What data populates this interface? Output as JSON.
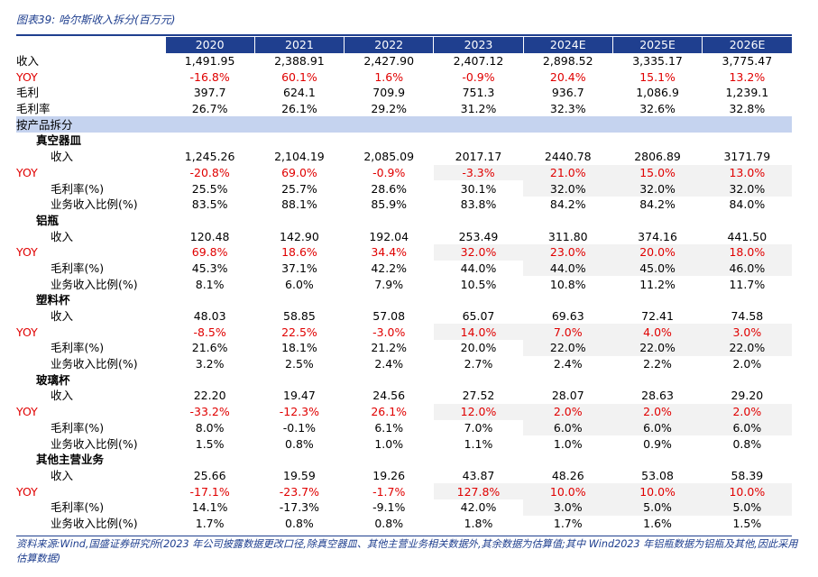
{
  "title": "图表39:  哈尔斯收入拆分(百万元)",
  "columns": [
    "2020",
    "2021",
    "2022",
    "2023",
    "2024E",
    "2025E",
    "2026E"
  ],
  "summary": [
    {
      "label": "收入",
      "type": "normal",
      "values": [
        "1,491.95",
        "2,388.91",
        "2,427.90",
        "2,407.12",
        "2,898.52",
        "3,335.17",
        "3,775.47"
      ]
    },
    {
      "label": "YOY",
      "type": "yoy",
      "values": [
        "-16.8%",
        "60.1%",
        "1.6%",
        "-0.9%",
        "20.4%",
        "15.1%",
        "13.2%"
      ]
    },
    {
      "label": "毛利",
      "type": "normal",
      "values": [
        "397.7",
        "624.1",
        "709.9",
        "751.3",
        "936.7",
        "1,086.9",
        "1,239.1"
      ]
    },
    {
      "label": "毛利率",
      "type": "normal",
      "values": [
        "26.7%",
        "26.1%",
        "29.2%",
        "31.2%",
        "32.3%",
        "32.6%",
        "32.8%"
      ]
    }
  ],
  "section_label": "按产品拆分",
  "groups": [
    {
      "name": "真空器皿",
      "rows": [
        {
          "label": "收入",
          "type": "normal",
          "values": [
            "1,245.26",
            "2,104.19",
            "2,085.09",
            "2017.17",
            "2440.78",
            "2806.89",
            "3171.79"
          ]
        },
        {
          "label": "YOY",
          "type": "yoy",
          "values": [
            "-20.8%",
            "69.0%",
            "-0.9%",
            "-3.3%",
            "21.0%",
            "15.0%",
            "13.0%"
          ]
        },
        {
          "label": "毛利率(%)",
          "type": "metric",
          "values": [
            "25.5%",
            "25.7%",
            "28.6%",
            "30.1%",
            "32.0%",
            "32.0%",
            "32.0%"
          ]
        },
        {
          "label": "业务收入比例(%)",
          "type": "normal",
          "values": [
            "83.5%",
            "88.1%",
            "85.9%",
            "83.8%",
            "84.2%",
            "84.2%",
            "84.0%"
          ]
        }
      ]
    },
    {
      "name": "铝瓶",
      "rows": [
        {
          "label": "收入",
          "type": "normal",
          "values": [
            "120.48",
            "142.90",
            "192.04",
            "253.49",
            "311.80",
            "374.16",
            "441.50"
          ]
        },
        {
          "label": "YOY",
          "type": "yoy",
          "values": [
            "69.8%",
            "18.6%",
            "34.4%",
            "32.0%",
            "23.0%",
            "20.0%",
            "18.0%"
          ]
        },
        {
          "label": "毛利率(%)",
          "type": "metric",
          "values": [
            "45.3%",
            "37.1%",
            "42.2%",
            "44.0%",
            "44.0%",
            "45.0%",
            "46.0%"
          ]
        },
        {
          "label": "业务收入比例(%)",
          "type": "normal",
          "values": [
            "8.1%",
            "6.0%",
            "7.9%",
            "10.5%",
            "10.8%",
            "11.2%",
            "11.7%"
          ]
        }
      ]
    },
    {
      "name": "塑料杯",
      "rows": [
        {
          "label": "收入",
          "type": "normal",
          "values": [
            "48.03",
            "58.85",
            "57.08",
            "65.07",
            "69.63",
            "72.41",
            "74.58"
          ]
        },
        {
          "label": "YOY",
          "type": "yoy",
          "values": [
            "-8.5%",
            "22.5%",
            "-3.0%",
            "14.0%",
            "7.0%",
            "4.0%",
            "3.0%"
          ]
        },
        {
          "label": "毛利率(%)",
          "type": "metric",
          "values": [
            "21.6%",
            "18.1%",
            "21.2%",
            "20.0%",
            "22.0%",
            "22.0%",
            "22.0%"
          ]
        },
        {
          "label": "业务收入比例(%)",
          "type": "normal",
          "values": [
            "3.2%",
            "2.5%",
            "2.4%",
            "2.7%",
            "2.4%",
            "2.2%",
            "2.0%"
          ]
        }
      ]
    },
    {
      "name": "玻璃杯",
      "rows": [
        {
          "label": "收入",
          "type": "normal",
          "values": [
            "22.20",
            "19.47",
            "24.56",
            "27.52",
            "28.07",
            "28.63",
            "29.20"
          ]
        },
        {
          "label": "YOY",
          "type": "yoy",
          "values": [
            "-33.2%",
            "-12.3%",
            "26.1%",
            "12.0%",
            "2.0%",
            "2.0%",
            "2.0%"
          ]
        },
        {
          "label": "毛利率(%)",
          "type": "metric",
          "values": [
            "8.0%",
            "-0.1%",
            "6.1%",
            "7.0%",
            "6.0%",
            "6.0%",
            "6.0%"
          ]
        },
        {
          "label": "业务收入比例(%)",
          "type": "normal",
          "values": [
            "1.5%",
            "0.8%",
            "1.0%",
            "1.1%",
            "1.0%",
            "0.9%",
            "0.8%"
          ]
        }
      ]
    },
    {
      "name": "其他主营业务",
      "rows": [
        {
          "label": "收入",
          "type": "normal",
          "values": [
            "25.66",
            "19.59",
            "19.26",
            "43.87",
            "48.26",
            "53.08",
            "58.39"
          ]
        },
        {
          "label": "YOY",
          "type": "yoy",
          "values": [
            "-17.1%",
            "-23.7%",
            "-1.7%",
            "127.8%",
            "10.0%",
            "10.0%",
            "10.0%"
          ]
        },
        {
          "label": "毛利率(%)",
          "type": "metric",
          "values": [
            "14.1%",
            "-17.3%",
            "-9.1%",
            "42.0%",
            "3.0%",
            "5.0%",
            "5.0%"
          ]
        },
        {
          "label": "业务收入比例(%)",
          "type": "normal",
          "values": [
            "1.7%",
            "0.8%",
            "0.8%",
            "1.8%",
            "1.7%",
            "1.6%",
            "1.5%"
          ]
        }
      ]
    }
  ],
  "source": "资料来源:Wind,国盛证券研究所(2023 年公司披露数据更改口径,除真空器皿、其他主营业务相关数据外,其余数据为估算值;其中 Wind2023 年铝瓶数据为铝瓶及其他,因此采用估算数据)",
  "colors": {
    "accent": "#1f3f8f",
    "section_bg": "#c5d3ef",
    "yoy_red": "#e00000",
    "estimate_shade": "#f2f2f2"
  }
}
